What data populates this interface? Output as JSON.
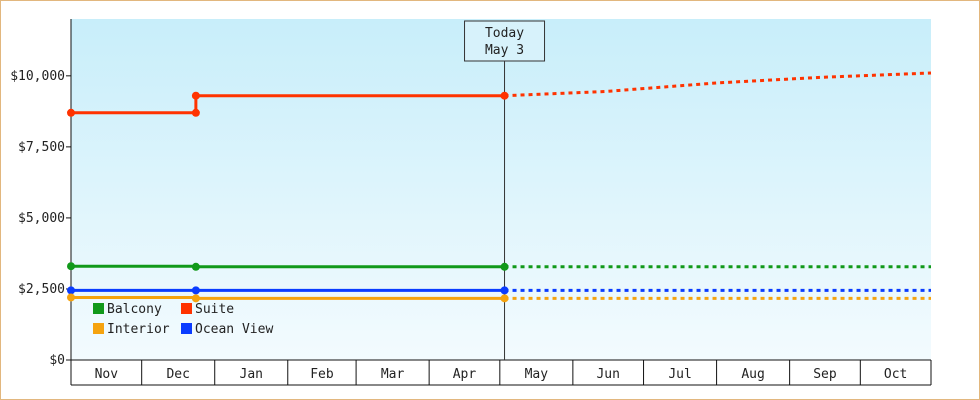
{
  "chart_data": {
    "type": "line",
    "x_axis": {
      "months": [
        "Nov",
        "Dec",
        "Jan",
        "Feb",
        "Mar",
        "Apr",
        "May",
        "Jun",
        "Jul",
        "Aug",
        "Sep",
        "Oct"
      ],
      "start": "2015-11-01",
      "end": "2016-10-31"
    },
    "y_axis": {
      "range": [
        0,
        12000
      ],
      "ticks": [
        0,
        2500,
        5000,
        7500,
        10000
      ],
      "tick_labels": [
        "$0",
        "$2,500",
        "$5,000",
        "$7,500",
        "$10,000"
      ]
    },
    "today_marker": {
      "date": "2016-05-03",
      "line1": "Today",
      "line2": "May 3"
    },
    "legend": {
      "placement": "bottom-left"
    },
    "grid": false,
    "series": [
      {
        "name": "Suite",
        "color": "#ff3300",
        "observed": [
          [
            "2015-11-01",
            8700
          ],
          [
            "2015-12-24",
            8700
          ],
          [
            "2015-12-24",
            9300
          ],
          [
            "2016-05-03",
            9300
          ]
        ],
        "points": [
          [
            "2015-11-01",
            8700
          ],
          [
            "2015-12-24",
            8700
          ],
          [
            "2015-12-24",
            9300
          ],
          [
            "2016-05-03",
            9300
          ]
        ],
        "forecast": [
          [
            "2016-05-03",
            9300
          ],
          [
            "2016-06-15",
            9450
          ],
          [
            "2016-08-01",
            9750
          ],
          [
            "2016-09-15",
            9950
          ],
          [
            "2016-10-31",
            10100
          ]
        ]
      },
      {
        "name": "Balcony",
        "color": "#11991a",
        "observed": [
          [
            "2015-11-01",
            3300
          ],
          [
            "2015-12-24",
            3300
          ],
          [
            "2015-12-24",
            3280
          ],
          [
            "2016-05-03",
            3280
          ]
        ],
        "points": [
          [
            "2015-11-01",
            3300
          ],
          [
            "2015-12-24",
            3280
          ],
          [
            "2016-05-03",
            3280
          ]
        ],
        "forecast": [
          [
            "2016-05-03",
            3280
          ],
          [
            "2016-10-31",
            3280
          ]
        ]
      },
      {
        "name": "Ocean View",
        "color": "#0a3cff",
        "observed": [
          [
            "2015-11-01",
            2450
          ],
          [
            "2016-05-03",
            2450
          ]
        ],
        "points": [
          [
            "2015-11-01",
            2450
          ],
          [
            "2015-12-24",
            2450
          ],
          [
            "2016-05-03",
            2450
          ]
        ],
        "forecast": [
          [
            "2016-05-03",
            2450
          ],
          [
            "2016-10-31",
            2450
          ]
        ]
      },
      {
        "name": "Interior",
        "color": "#f5a30f",
        "observed": [
          [
            "2015-11-01",
            2200
          ],
          [
            "2015-12-24",
            2200
          ],
          [
            "2015-12-24",
            2170
          ],
          [
            "2016-05-03",
            2170
          ]
        ],
        "points": [
          [
            "2015-11-01",
            2200
          ],
          [
            "2015-12-24",
            2170
          ],
          [
            "2016-05-03",
            2170
          ]
        ],
        "forecast": [
          [
            "2016-05-03",
            2170
          ],
          [
            "2016-10-31",
            2170
          ]
        ]
      }
    ],
    "legend_order": [
      "Balcony",
      "Suite",
      "Interior",
      "Ocean View"
    ]
  }
}
